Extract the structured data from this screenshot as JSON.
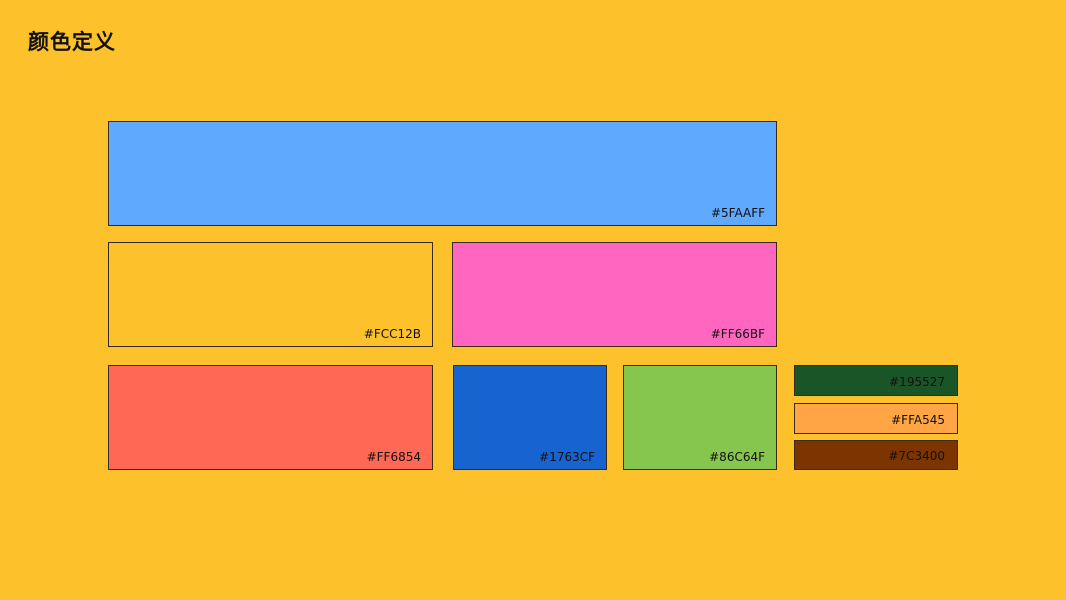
{
  "title": "颜色定义",
  "background": "#FCC12B",
  "swatches": [
    {
      "label": "#5FAAFF",
      "color": "#5FAAFF"
    },
    {
      "label": "#FCC12B",
      "color": "#FCC12B"
    },
    {
      "label": "#FF66BF",
      "color": "#FF66BF"
    },
    {
      "label": "#FF6854",
      "color": "#FF6854"
    },
    {
      "label": "#1763CF",
      "color": "#1763CF"
    },
    {
      "label": "#86C64F",
      "color": "#86C64F"
    },
    {
      "label": "#195527",
      "color": "#195527"
    },
    {
      "label": "#FFA545",
      "color": "#FFA545"
    },
    {
      "label": "#7C3400",
      "color": "#7C3400"
    }
  ]
}
